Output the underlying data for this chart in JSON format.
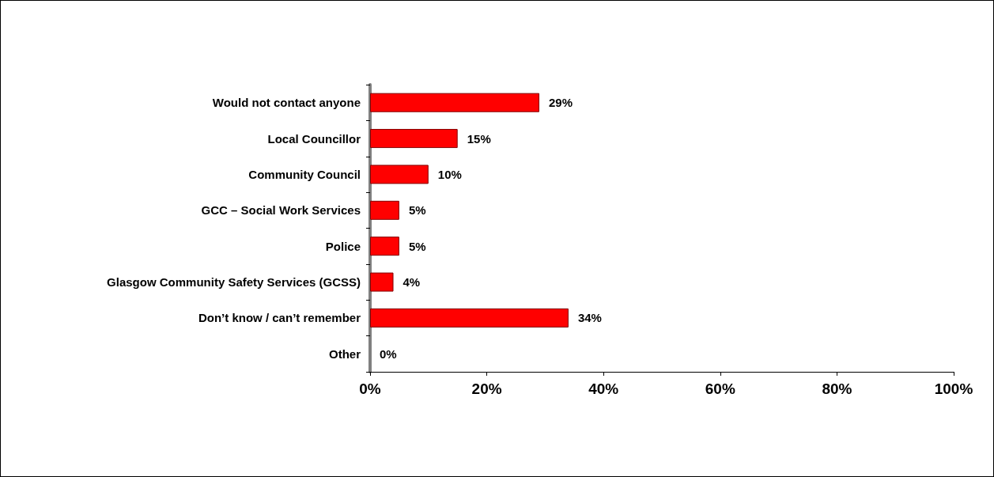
{
  "chart_data": {
    "type": "bar",
    "orientation": "horizontal",
    "categories": [
      "Would not contact anyone",
      "Local Councillor",
      "Community Council",
      "GCC – Social Work Services",
      "Police",
      "Glasgow Community Safety Services (GCSS)",
      "Don’t know / can’t remember",
      "Other"
    ],
    "values": [
      29,
      15,
      10,
      5,
      5,
      4,
      34,
      0
    ],
    "value_labels": [
      "29%",
      "15%",
      "10%",
      "5%",
      "5%",
      "4%",
      "34%",
      "0%"
    ],
    "color": "#ff0000",
    "xlim": [
      0,
      100
    ],
    "xticks": [
      {
        "value": 0,
        "label": "0%"
      },
      {
        "value": 20,
        "label": "20%"
      },
      {
        "value": 40,
        "label": "40%"
      },
      {
        "value": 60,
        "label": "60%"
      },
      {
        "value": 80,
        "label": "80%"
      },
      {
        "value": 100,
        "label": "100%"
      }
    ],
    "grid": false
  }
}
